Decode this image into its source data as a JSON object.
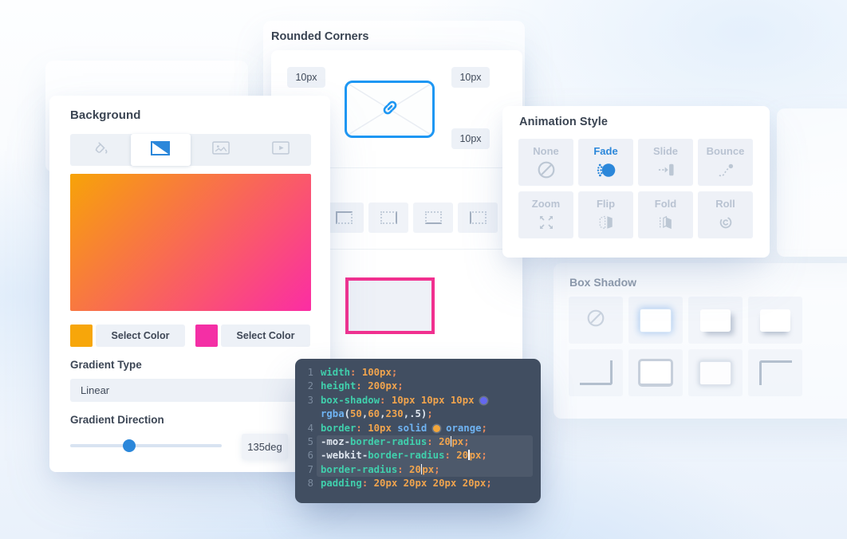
{
  "background_panel": {
    "title": "Background",
    "tabs": [
      {
        "icon": "paint-bucket-icon",
        "selected": false
      },
      {
        "icon": "gradient-icon",
        "selected": true
      },
      {
        "icon": "image-icon",
        "selected": false
      },
      {
        "icon": "video-icon",
        "selected": false
      }
    ],
    "gradient_preview": {
      "start_color": "#f7a308",
      "end_color": "#fb2da4",
      "angle": "135deg"
    },
    "color_stops": [
      {
        "swatch_color": "#f7a60a",
        "button_label": "Select Color"
      },
      {
        "swatch_color": "#f42fa5",
        "button_label": "Select Color"
      }
    ],
    "gradient_type": {
      "label": "Gradient Type",
      "value": "Linear"
    },
    "gradient_direction": {
      "label": "Gradient Direction",
      "value": "135deg",
      "slider_percent": 39
    }
  },
  "rounded_corners_panel": {
    "title": "Rounded Corners",
    "radius_values": [
      {
        "position": "top-left",
        "value": "10px"
      },
      {
        "position": "top-right",
        "value": "10px"
      },
      {
        "position": "bottom-right",
        "value": "10px"
      }
    ],
    "link_icon": "link-icon",
    "link_border_color": "#1e97f3",
    "border_style_options": [
      {
        "icon": "border-corner-top-left-icon",
        "style": "corner-top-left"
      },
      {
        "icon": "border-side-right-icon",
        "style": "side-right"
      },
      {
        "icon": "border-side-bottom-icon",
        "style": "side-bottom"
      },
      {
        "icon": "border-side-left-icon",
        "style": "side-left"
      }
    ],
    "preview_border_color": "#f1308f"
  },
  "animation_panel": {
    "title": "Animation Style",
    "accent_color": "#2b87da",
    "options": [
      {
        "label": "None",
        "icon": "none-icon",
        "selected": false
      },
      {
        "label": "Fade",
        "icon": "fade-icon",
        "selected": true
      },
      {
        "label": "Slide",
        "icon": "slide-icon",
        "selected": false
      },
      {
        "label": "Bounce",
        "icon": "bounce-icon",
        "selected": false
      },
      {
        "label": "Zoom",
        "icon": "zoom-icon",
        "selected": false
      },
      {
        "label": "Flip",
        "icon": "flip-icon",
        "selected": false
      },
      {
        "label": "Fold",
        "icon": "fold-icon",
        "selected": false
      },
      {
        "label": "Roll",
        "icon": "roll-icon",
        "selected": false
      }
    ]
  },
  "box_shadow_panel": {
    "title": "Box Shadow",
    "options": [
      {
        "icon": "shadow-none-icon",
        "style": "none"
      },
      {
        "icon": "shadow-glow-icon",
        "style": "glow"
      },
      {
        "icon": "shadow-drop-right-icon",
        "style": "drop-right"
      },
      {
        "icon": "shadow-drop-bottom-icon",
        "style": "drop-bottom"
      },
      {
        "icon": "shadow-inset-bottom-right-icon",
        "style": "inset-bottom-right"
      },
      {
        "icon": "shadow-ring-icon",
        "style": "ring"
      },
      {
        "icon": "shadow-soft-icon",
        "style": "soft"
      },
      {
        "icon": "shadow-inset-top-left-icon",
        "style": "inset-top-left"
      }
    ]
  },
  "code_editor": {
    "lines": [
      {
        "num": "1",
        "hl": false,
        "tokens": [
          [
            "prop",
            "width"
          ],
          [
            "pun",
            ":"
          ],
          [
            "num",
            " 100px"
          ],
          [
            "pun",
            ";"
          ]
        ]
      },
      {
        "num": "2",
        "hl": false,
        "tokens": [
          [
            "prop",
            "height"
          ],
          [
            "pun",
            ":"
          ],
          [
            "num",
            " 200px"
          ],
          [
            "pun",
            ";"
          ]
        ]
      },
      {
        "num": "3",
        "hl": false,
        "tokens": [
          [
            "prop",
            "box-shadow"
          ],
          [
            "pun",
            ":"
          ],
          [
            "num",
            " 10px 10px 10px "
          ],
          [
            "swatch",
            "#6468f0"
          ]
        ]
      },
      {
        "num": "",
        "hl": false,
        "tokens": [
          [
            "kw",
            "rgba"
          ],
          [
            "plain",
            "("
          ],
          [
            "num",
            "50"
          ],
          [
            "plain",
            ","
          ],
          [
            "num",
            "60"
          ],
          [
            "plain",
            ","
          ],
          [
            "num",
            "230"
          ],
          [
            "plain",
            ","
          ],
          [
            "plain",
            ".5"
          ],
          [
            "plain",
            ")"
          ],
          [
            "pun",
            ";"
          ]
        ]
      },
      {
        "num": "4",
        "hl": false,
        "tokens": [
          [
            "prop",
            "border"
          ],
          [
            "pun",
            ":"
          ],
          [
            "num",
            " 10px"
          ],
          [
            "kw",
            " solid "
          ],
          [
            "swatch",
            "#f2a63b"
          ],
          [
            "kw",
            " orange"
          ],
          [
            "pun",
            ";"
          ]
        ]
      },
      {
        "num": "5",
        "hl": true,
        "tokens": [
          [
            "plain",
            "-moz-"
          ],
          [
            "prop",
            "border-radius"
          ],
          [
            "pun",
            ":"
          ],
          [
            "num",
            " 20"
          ],
          [
            "caret",
            ""
          ],
          [
            "num",
            "px"
          ],
          [
            "pun",
            ";"
          ]
        ]
      },
      {
        "num": "6",
        "hl": true,
        "tokens": [
          [
            "plain",
            "-webkit-"
          ],
          [
            "prop",
            "border-radius"
          ],
          [
            "pun",
            ":"
          ],
          [
            "num",
            " 20"
          ],
          [
            "caret",
            ""
          ],
          [
            "num",
            "px"
          ],
          [
            "pun",
            ";"
          ]
        ]
      },
      {
        "num": "7",
        "hl": true,
        "tokens": [
          [
            "prop",
            "border-radius"
          ],
          [
            "pun",
            ":"
          ],
          [
            "num",
            " 20"
          ],
          [
            "caret",
            ""
          ],
          [
            "num",
            "px"
          ],
          [
            "pun",
            ";"
          ]
        ]
      },
      {
        "num": "8",
        "hl": false,
        "tokens": [
          [
            "prop",
            "padding"
          ],
          [
            "pun",
            ":"
          ],
          [
            "num",
            " 20px 20px 20px 20px"
          ],
          [
            "pun",
            ";"
          ]
        ]
      }
    ]
  }
}
